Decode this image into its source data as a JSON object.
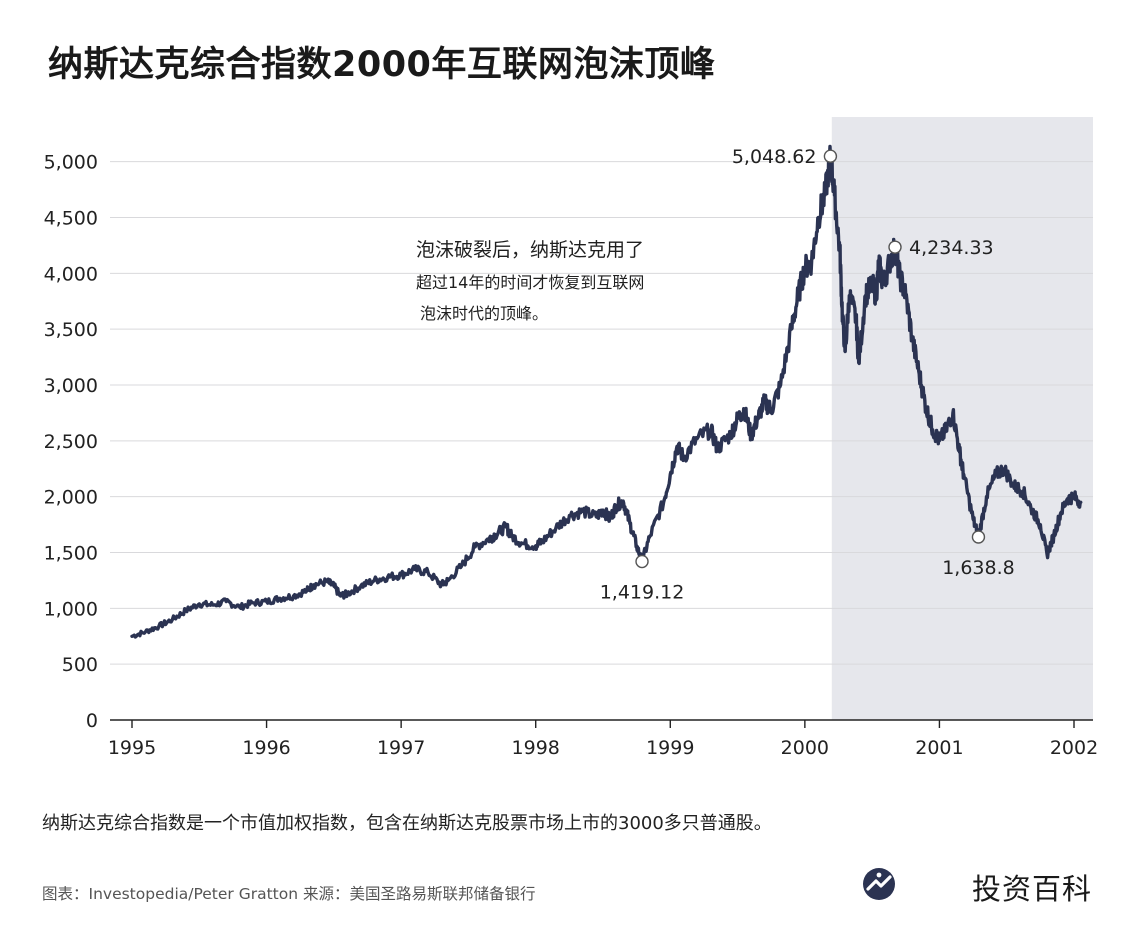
{
  "page": {
    "title": "纳斯达克综合指数2000年互联网泡沫顶峰",
    "description": "纳斯达克综合指数是一个市值加权指数，包含在纳斯达克股票市场上市的3000多只普通股。",
    "source": "图表：Investopedia/Peter Gratton 来源：美国圣路易斯联邦储备银行",
    "brand": "投资百科",
    "brand_logo_icon": "investopedia-logo-icon"
  },
  "chart_data": {
    "type": "line",
    "title": "纳斯达克综合指数2000年互联网泡沫顶峰",
    "xlabel": "",
    "ylabel": "",
    "x_ticks": [
      "1995",
      "1996",
      "1997",
      "1998",
      "1999",
      "2000",
      "2001",
      "2002"
    ],
    "xlim": [
      1995.0,
      2002.0
    ],
    "y_ticks": [
      "0",
      "500",
      "1,000",
      "1,500",
      "2,000",
      "2,500",
      "3,000",
      "3,500",
      "4,000",
      "4,500",
      "5,000"
    ],
    "ylim": [
      0,
      5400
    ],
    "grid": "horizontal",
    "line_color": "#2b3352",
    "shaded_region": {
      "x_start": 2000.2,
      "x_end": 2002.15,
      "color": "#e6e7ec"
    },
    "series": [
      {
        "values": [
          [
            1995.0,
            750
          ],
          [
            1995.1,
            790
          ],
          [
            1995.2,
            840
          ],
          [
            1995.3,
            900
          ],
          [
            1995.4,
            980
          ],
          [
            1995.5,
            1040
          ],
          [
            1995.6,
            1030
          ],
          [
            1995.7,
            1060
          ],
          [
            1995.8,
            1010
          ],
          [
            1995.9,
            1050
          ],
          [
            1996.0,
            1060
          ],
          [
            1996.1,
            1090
          ],
          [
            1996.2,
            1110
          ],
          [
            1996.3,
            1160
          ],
          [
            1996.35,
            1210
          ],
          [
            1996.45,
            1240
          ],
          [
            1996.5,
            1200
          ],
          [
            1996.55,
            1110
          ],
          [
            1996.6,
            1130
          ],
          [
            1996.7,
            1200
          ],
          [
            1996.8,
            1250
          ],
          [
            1996.9,
            1280
          ],
          [
            1997.0,
            1300
          ],
          [
            1997.1,
            1350
          ],
          [
            1997.2,
            1320
          ],
          [
            1997.3,
            1210
          ],
          [
            1997.35,
            1250
          ],
          [
            1997.45,
            1380
          ],
          [
            1997.55,
            1550
          ],
          [
            1997.65,
            1620
          ],
          [
            1997.7,
            1660
          ],
          [
            1997.78,
            1730
          ],
          [
            1997.82,
            1650
          ],
          [
            1997.9,
            1580
          ],
          [
            1998.0,
            1560
          ],
          [
            1998.05,
            1600
          ],
          [
            1998.15,
            1720
          ],
          [
            1998.25,
            1830
          ],
          [
            1998.35,
            1870
          ],
          [
            1998.45,
            1820
          ],
          [
            1998.5,
            1880
          ],
          [
            1998.55,
            1800
          ],
          [
            1998.6,
            1920
          ],
          [
            1998.65,
            1960
          ],
          [
            1998.7,
            1760
          ],
          [
            1998.75,
            1560
          ],
          [
            1998.79,
            1419
          ],
          [
            1998.85,
            1650
          ],
          [
            1998.95,
            1950
          ],
          [
            1999.0,
            2200
          ],
          [
            1999.05,
            2450
          ],
          [
            1999.1,
            2350
          ],
          [
            1999.2,
            2520
          ],
          [
            1999.3,
            2600
          ],
          [
            1999.35,
            2430
          ],
          [
            1999.45,
            2560
          ],
          [
            1999.5,
            2700
          ],
          [
            1999.55,
            2780
          ],
          [
            1999.6,
            2550
          ],
          [
            1999.65,
            2700
          ],
          [
            1999.7,
            2850
          ],
          [
            1999.75,
            2780
          ],
          [
            1999.82,
            3000
          ],
          [
            1999.9,
            3500
          ],
          [
            1999.95,
            3800
          ],
          [
            2000.0,
            4050
          ],
          [
            2000.05,
            4100
          ],
          [
            2000.1,
            4500
          ],
          [
            2000.15,
            4700
          ],
          [
            2000.19,
            5048
          ],
          [
            2000.22,
            4700
          ],
          [
            2000.26,
            4200
          ],
          [
            2000.28,
            3600
          ],
          [
            2000.3,
            3300
          ],
          [
            2000.33,
            3800
          ],
          [
            2000.38,
            3600
          ],
          [
            2000.4,
            3200
          ],
          [
            2000.45,
            3800
          ],
          [
            2000.5,
            3900
          ],
          [
            2000.53,
            3800
          ],
          [
            2000.55,
            4100
          ],
          [
            2000.58,
            3900
          ],
          [
            2000.63,
            4100
          ],
          [
            2000.67,
            4234
          ],
          [
            2000.7,
            4000
          ],
          [
            2000.75,
            3800
          ],
          [
            2000.8,
            3400
          ],
          [
            2000.85,
            3100
          ],
          [
            2000.9,
            2800
          ],
          [
            2000.95,
            2600
          ],
          [
            2001.0,
            2500
          ],
          [
            2001.05,
            2600
          ],
          [
            2001.1,
            2750
          ],
          [
            2001.15,
            2400
          ],
          [
            2001.18,
            2200
          ],
          [
            2001.25,
            1800
          ],
          [
            2001.29,
            1639
          ],
          [
            2001.35,
            2000
          ],
          [
            2001.42,
            2200
          ],
          [
            2001.48,
            2250
          ],
          [
            2001.55,
            2100
          ],
          [
            2001.62,
            2050
          ],
          [
            2001.68,
            1900
          ],
          [
            2001.75,
            1750
          ],
          [
            2001.8,
            1480
          ],
          [
            2001.85,
            1650
          ],
          [
            2001.9,
            1850
          ],
          [
            2001.95,
            1980
          ],
          [
            2002.0,
            2000
          ],
          [
            2002.05,
            1950
          ]
        ]
      }
    ],
    "callouts": [
      {
        "x": 1998.79,
        "y": 1419.12,
        "label": "1,419.12",
        "position": "below"
      },
      {
        "x": 2000.19,
        "y": 5048.62,
        "label": "5,048.62",
        "position": "left"
      },
      {
        "x": 2000.67,
        "y": 4234.33,
        "label": "4,234.33",
        "position": "right"
      },
      {
        "x": 2001.29,
        "y": 1638.8,
        "label": "1,638.8",
        "position": "below"
      }
    ],
    "annotation": {
      "line1": "泡沫破裂后，纳斯达克用了",
      "line2": "超过14年的时间才恢复到互联网",
      "line3": "泡沫时代的顶峰。"
    }
  }
}
